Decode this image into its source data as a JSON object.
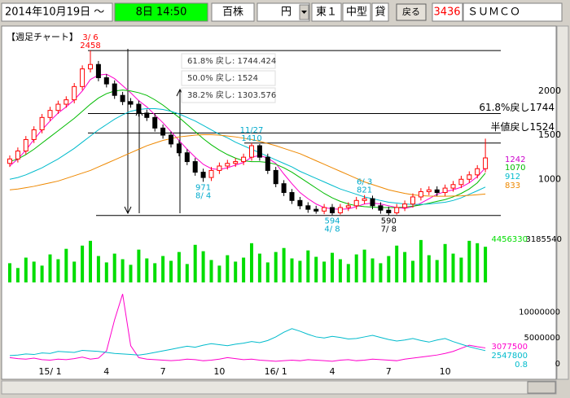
{
  "toolbar": {
    "date": "2014年10月19日 ～",
    "clock": "8日 14:50",
    "unit": "百株",
    "currency": "円",
    "market": "東１",
    "size": "中型",
    "lending": "貸",
    "back": "戻る",
    "code": "3436",
    "name": "ＳＵＭＣＯ"
  },
  "chart_data": [
    {
      "type": "candlestick",
      "title": "【週足チャート】",
      "categories": [
        null,
        null,
        null,
        null,
        null,
        "15/ 1",
        null,
        null,
        null,
        null,
        null,
        null,
        "4",
        null,
        null,
        null,
        null,
        null,
        null,
        "7",
        null,
        null,
        null,
        null,
        null,
        null,
        "10",
        null,
        null,
        null,
        null,
        null,
        null,
        "16/ 1",
        null,
        null,
        null,
        null,
        null,
        null,
        "4",
        null,
        null,
        null,
        null,
        null,
        null,
        "7",
        null,
        null,
        null,
        null,
        null,
        null,
        "10",
        null,
        null,
        null,
        null,
        null
      ],
      "open": [
        1180,
        1230,
        1320,
        1450,
        1560,
        1700,
        1780,
        1850,
        1900,
        2050,
        2250,
        2300,
        2150,
        2080,
        1950,
        1880,
        1850,
        1750,
        1700,
        1580,
        1500,
        1400,
        1300,
        1200,
        1080,
        1020,
        1100,
        1150,
        1180,
        1200,
        1250,
        1380,
        1250,
        1100,
        950,
        850,
        760,
        700,
        660,
        640,
        680,
        620,
        680,
        700,
        760,
        780,
        700,
        650,
        620,
        680,
        720,
        800,
        860,
        880,
        850,
        900,
        940,
        1000,
        1050,
        1120
      ],
      "high": [
        1270,
        1360,
        1490,
        1600,
        1740,
        1820,
        1890,
        1940,
        2090,
        2290,
        2458,
        2340,
        2190,
        2120,
        1990,
        1920,
        1890,
        1790,
        1740,
        1620,
        1540,
        1440,
        1340,
        1240,
        1120,
        1140,
        1190,
        1220,
        1240,
        1290,
        1410,
        1400,
        1290,
        1140,
        990,
        890,
        800,
        740,
        700,
        720,
        720,
        720,
        740,
        800,
        821,
        815,
        740,
        690,
        720,
        760,
        840,
        900,
        920,
        920,
        940,
        980,
        1040,
        1090,
        1160,
        1460
      ],
      "low": [
        1140,
        1190,
        1280,
        1410,
        1520,
        1660,
        1740,
        1810,
        1860,
        2010,
        2210,
        2110,
        2040,
        1910,
        1840,
        1810,
        1710,
        1660,
        1540,
        1460,
        1360,
        1260,
        1160,
        1040,
        971,
        980,
        1060,
        1110,
        1140,
        1160,
        1210,
        1210,
        1060,
        910,
        810,
        720,
        660,
        620,
        610,
        605,
        594,
        600,
        640,
        660,
        720,
        660,
        610,
        590,
        600,
        640,
        680,
        760,
        820,
        810,
        810,
        860,
        900,
        960,
        1010,
        1080
      ],
      "close": [
        1230,
        1320,
        1450,
        1560,
        1700,
        1780,
        1850,
        1900,
        2050,
        2250,
        2300,
        2150,
        2080,
        1950,
        1880,
        1850,
        1750,
        1700,
        1580,
        1500,
        1400,
        1300,
        1200,
        1080,
        1020,
        1100,
        1150,
        1180,
        1200,
        1250,
        1380,
        1250,
        1100,
        950,
        850,
        760,
        700,
        660,
        640,
        680,
        620,
        680,
        700,
        760,
        780,
        700,
        650,
        620,
        680,
        720,
        800,
        860,
        880,
        850,
        900,
        940,
        1000,
        1050,
        1120,
        1242
      ],
      "up_color": "#ff0000",
      "down_color": "#000000",
      "close_label_color": "#cc00cc",
      "series": [
        {
          "color": "#ff00cc",
          "values": [
            1150,
            1230,
            1330,
            1450,
            1560,
            1660,
            1750,
            1820,
            1900,
            2000,
            2130,
            2180,
            2190,
            2140,
            2060,
            1980,
            1890,
            1820,
            1730,
            1640,
            1540,
            1440,
            1340,
            1250,
            1170,
            1120,
            1110,
            1130,
            1160,
            1190,
            1250,
            1270,
            1240,
            1180,
            1060,
            950,
            850,
            780,
            720,
            680,
            665,
            660,
            665,
            690,
            720,
            730,
            720,
            700,
            680,
            670,
            690,
            730,
            780,
            830,
            860,
            880,
            910,
            960,
            1030,
            1130
          ]
        },
        {
          "color": "#00bb00",
          "values": [
            1200,
            1230,
            1280,
            1340,
            1410,
            1480,
            1550,
            1620,
            1690,
            1770,
            1850,
            1920,
            1970,
            2000,
            2010,
            2000,
            1980,
            1950,
            1900,
            1840,
            1770,
            1700,
            1620,
            1540,
            1460,
            1390,
            1330,
            1280,
            1240,
            1210,
            1200,
            1200,
            1190,
            1170,
            1130,
            1080,
            1020,
            960,
            900,
            840,
            790,
            750,
            720,
            700,
            690,
            685,
            680,
            680,
            680,
            685,
            695,
            710,
            730,
            750,
            770,
            800,
            840,
            890,
            960,
            1070
          ]
        },
        {
          "color": "#00bbcc",
          "values": [
            1000,
            1020,
            1050,
            1090,
            1130,
            1180,
            1230,
            1290,
            1350,
            1420,
            1490,
            1560,
            1620,
            1680,
            1730,
            1770,
            1790,
            1800,
            1800,
            1790,
            1770,
            1740,
            1700,
            1660,
            1610,
            1560,
            1510,
            1470,
            1420,
            1380,
            1340,
            1300,
            1260,
            1220,
            1180,
            1140,
            1090,
            1050,
            1010,
            970,
            930,
            890,
            860,
            830,
            800,
            780,
            760,
            740,
            730,
            720,
            715,
            715,
            720,
            730,
            740,
            760,
            790,
            830,
            870,
            912
          ]
        },
        {
          "color": "#ee8800",
          "values": [
            880,
            890,
            905,
            920,
            940,
            960,
            980,
            1010,
            1040,
            1070,
            1100,
            1140,
            1180,
            1220,
            1260,
            1300,
            1340,
            1380,
            1410,
            1440,
            1460,
            1480,
            1490,
            1500,
            1505,
            1505,
            1500,
            1490,
            1480,
            1465,
            1450,
            1430,
            1405,
            1380,
            1350,
            1320,
            1290,
            1250,
            1210,
            1170,
            1130,
            1090,
            1050,
            1010,
            970,
            940,
            910,
            880,
            860,
            840,
            825,
            815,
            810,
            808,
            808,
            810,
            812,
            818,
            825,
            833
          ]
        }
      ],
      "ylim": [
        560,
        2680
      ],
      "yticks": [
        1000,
        1500,
        2000
      ],
      "dates": [
        {
          "text": "3/ 6",
          "color": "#ff0000"
        },
        {
          "text": "8/ 4",
          "color": "#00aacc"
        },
        {
          "text": "11/27",
          "color": "#00aacc"
        },
        {
          "text": "4/ 8",
          "color": "#00aacc"
        },
        {
          "text": "6/ 3",
          "color": "#00aacc"
        },
        {
          "text": "7/ 8",
          "color": "#000000"
        }
      ],
      "fib_box": [
        {
          "label": "61.8% 戻し: 1744.424",
          "value": 1744.424
        },
        {
          "label": "50.0% 戻し: 1524",
          "value": 1524
        },
        {
          "label": "38.2% 戻し: 1303.576",
          "value": 1303.576
        }
      ],
      "fib_lines": [
        {
          "label": "61.8%戻し1744",
          "value": 1744.424
        },
        {
          "label": "半値戻し1524",
          "value": 1524
        }
      ]
    },
    {
      "type": "bar",
      "color": "#00dd00",
      "values": [
        2400000,
        1800000,
        3100000,
        2600000,
        2100000,
        3500000,
        2900000,
        4200000,
        2600000,
        4600000,
        5200000,
        3300000,
        2500000,
        3600000,
        2900000,
        2200000,
        4100000,
        3000000,
        2400000,
        3300000,
        2700000,
        3800000,
        2300000,
        4700000,
        3900000,
        2800000,
        2100000,
        3400000,
        2600000,
        3100000,
        4900000,
        3600000,
        2500000,
        3800000,
        4300000,
        3000000,
        2700000,
        4000000,
        3200000,
        2600000,
        3700000,
        2900000,
        2300000,
        3500000,
        4100000,
        3000000,
        2400000,
        3300000,
        4600000,
        3800000,
        2700000,
        5300000,
        3400000,
        2800000,
        4800000,
        3600000,
        3100000,
        5200000,
        4900000,
        4456330
      ],
      "average": 3185540,
      "ylim": [
        0,
        6000000
      ]
    },
    {
      "type": "line",
      "series": [
        {
          "color": "#ff00cc",
          "values": [
            1200000,
            1000000,
            900000,
            1100000,
            800000,
            700000,
            900000,
            800000,
            1000000,
            1300000,
            900000,
            1100000,
            2500000,
            8500000,
            13500000,
            3500000,
            1200000,
            900000,
            800000,
            700000,
            600000,
            700000,
            900000,
            800000,
            600000,
            700000,
            900000,
            1200000,
            1000000,
            800000,
            900000,
            700000,
            600000,
            500000,
            600000,
            700000,
            600000,
            800000,
            700000,
            600000,
            500000,
            700000,
            800000,
            600000,
            700000,
            900000,
            800000,
            700000,
            600000,
            900000,
            1100000,
            1300000,
            1500000,
            1700000,
            2000000,
            2400000,
            3000000,
            3600000,
            3300000,
            3077500
          ]
        },
        {
          "color": "#00bbcc",
          "values": [
            1600000,
            1700000,
            1900000,
            1800000,
            2100000,
            2000000,
            2400000,
            2300000,
            2200000,
            2600000,
            2500000,
            2400000,
            2200000,
            2000000,
            1900000,
            1800000,
            1700000,
            1900000,
            2200000,
            2500000,
            2800000,
            3100000,
            3400000,
            3200000,
            3600000,
            3900000,
            3700000,
            3500000,
            3800000,
            4000000,
            4300000,
            4100000,
            4500000,
            5200000,
            6100000,
            6800000,
            6300000,
            5700000,
            5200000,
            5000000,
            5300000,
            5100000,
            4800000,
            4900000,
            5200000,
            5500000,
            5100000,
            4700000,
            4400000,
            4600000,
            4900000,
            4500000,
            4200000,
            4600000,
            4900000,
            4300000,
            3800000,
            3300000,
            2900000,
            2547800
          ]
        }
      ],
      "ratio": "0.8",
      "ylim": [
        0,
        14000000
      ],
      "yticks": [
        0,
        5000000,
        10000000
      ]
    }
  ]
}
